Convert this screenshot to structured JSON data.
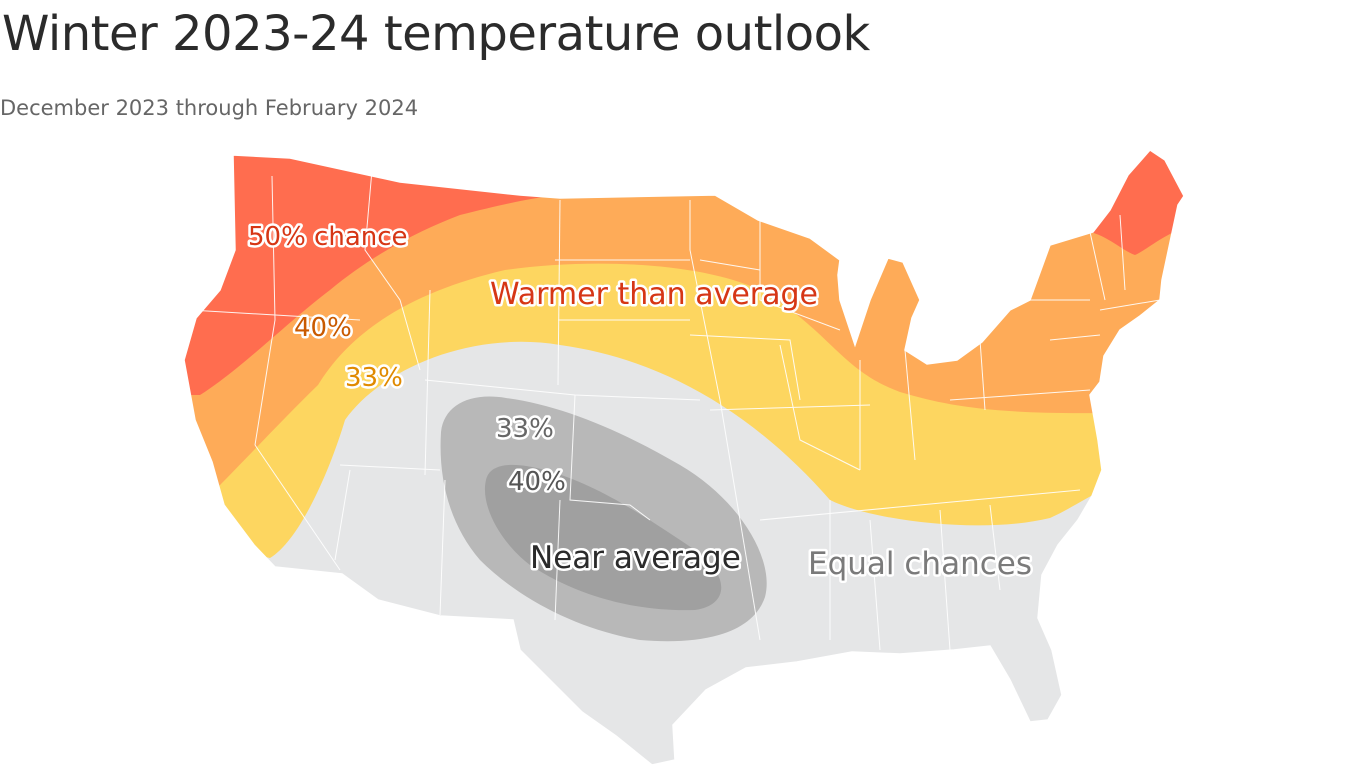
{
  "title": "Winter 2023-24 temperature outlook",
  "subtitle": "December 2023 through February 2024",
  "colors": {
    "warmer_50": "#ff6d4f",
    "warmer_40": "#feab58",
    "warmer_33": "#fdd660",
    "equal_chances": "#e5e6e7",
    "near_33": "#b8b8b8",
    "near_40": "#a0a0a0",
    "label_red": "#d63615",
    "label_orange": "#c95a00",
    "label_dark": "#333333",
    "label_gray": "#777777"
  },
  "labels": {
    "warmer_50": "50% chance",
    "warmer_40": "40%",
    "warmer_33": "33%",
    "warmer_title": "Warmer than average",
    "near_33": "33%",
    "near_40": "40%",
    "near_title": "Near average",
    "equal": "Equal chances"
  }
}
